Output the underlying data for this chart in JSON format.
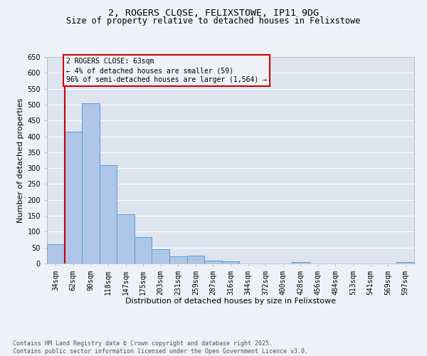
{
  "title_line1": "2, ROGERS CLOSE, FELIXSTOWE, IP11 9DG",
  "title_line2": "Size of property relative to detached houses in Felixstowe",
  "xlabel": "Distribution of detached houses by size in Felixstowe",
  "ylabel": "Number of detached properties",
  "categories": [
    "34sqm",
    "62sqm",
    "90sqm",
    "118sqm",
    "147sqm",
    "175sqm",
    "203sqm",
    "231sqm",
    "259sqm",
    "287sqm",
    "316sqm",
    "344sqm",
    "372sqm",
    "400sqm",
    "428sqm",
    "456sqm",
    "484sqm",
    "513sqm",
    "541sqm",
    "569sqm",
    "597sqm"
  ],
  "values": [
    60,
    415,
    505,
    310,
    155,
    82,
    45,
    22,
    24,
    10,
    7,
    0,
    0,
    0,
    4,
    0,
    0,
    0,
    0,
    0,
    4
  ],
  "bar_color": "#aec6e8",
  "bar_edge_color": "#5b9bd5",
  "bg_color": "#eef2f8",
  "plot_bg": "#dde4f0",
  "grid_color": "#ffffff",
  "annotation_box_edge": "#cc0000",
  "annotation_text": "2 ROGERS CLOSE: 63sqm\n← 4% of detached houses are smaller (59)\n96% of semi-detached houses are larger (1,564) →",
  "vline_color": "#cc0000",
  "ylim": [
    0,
    650
  ],
  "yticks": [
    0,
    50,
    100,
    150,
    200,
    250,
    300,
    350,
    400,
    450,
    500,
    550,
    600,
    650
  ],
  "footnote": "Contains HM Land Registry data © Crown copyright and database right 2025.\nContains public sector information licensed under the Open Government Licence v3.0.",
  "title_fontsize": 9.5,
  "subtitle_fontsize": 8.5,
  "axis_label_fontsize": 8,
  "tick_fontsize": 7,
  "annotation_fontsize": 7,
  "footnote_fontsize": 6
}
